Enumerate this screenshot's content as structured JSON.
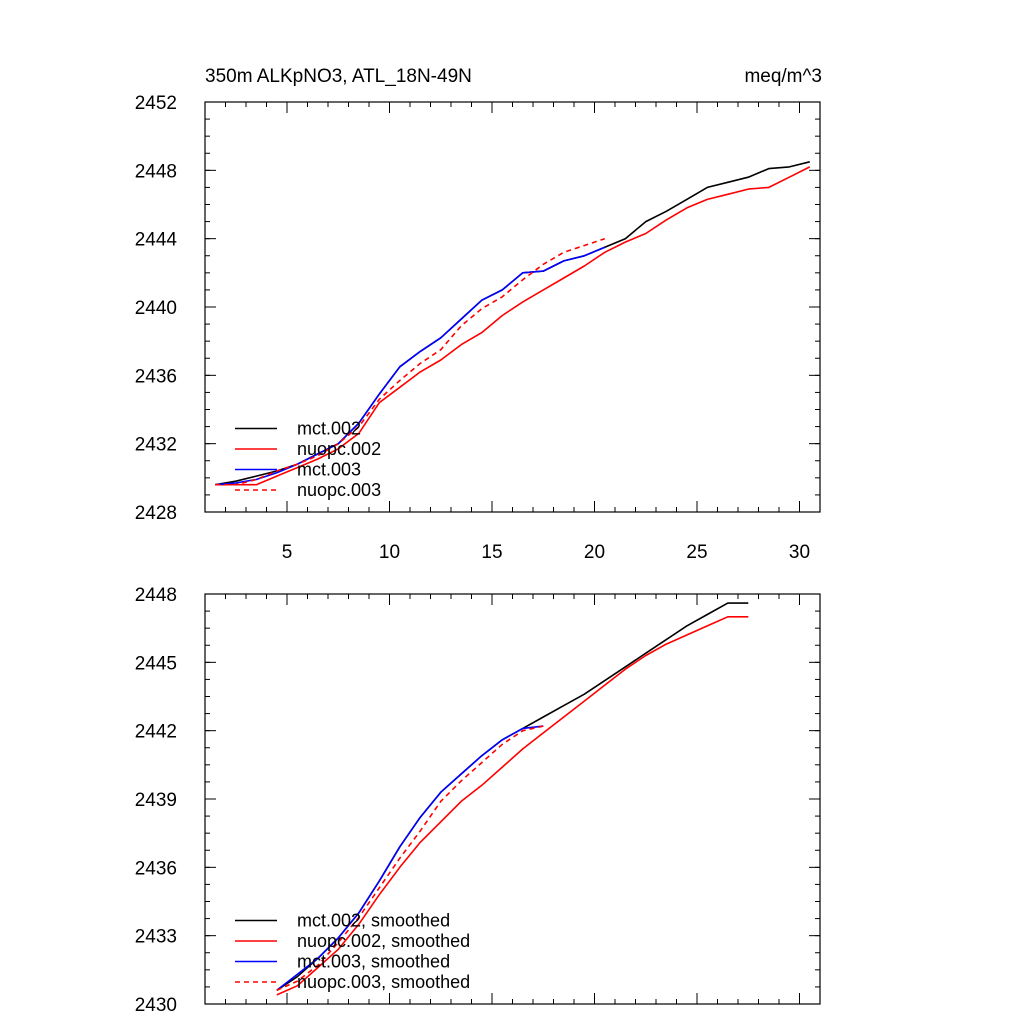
{
  "chart_data": [
    {
      "type": "line",
      "title_left": "350m ALKpNO3, ATL_18N-49N",
      "title_right": "meq/m^3",
      "xlabel": "",
      "ylabel": "",
      "xlim": [
        1,
        31
      ],
      "ylim": [
        2428,
        2452
      ],
      "xticks": [
        5,
        10,
        15,
        20,
        25,
        30
      ],
      "yticks": [
        2428,
        2432,
        2436,
        2440,
        2444,
        2448,
        2452
      ],
      "x_tick_labels_shown": true,
      "grid": false,
      "legend_position": "bottom-left",
      "series": [
        {
          "name": "mct.002",
          "color": "#000000",
          "dash": "solid",
          "x": [
            1.5,
            2.5,
            3.5,
            4.5,
            5.5,
            6.5,
            7.5,
            8.5,
            9.5,
            10.5,
            11.5,
            12.5,
            13.5,
            14.5,
            15.5,
            16.5,
            17.5,
            18.5,
            19.5,
            20.5,
            21.5,
            22.5,
            23.5,
            24.5,
            25.5,
            26.5,
            27.5,
            28.5,
            29.5,
            30.5
          ],
          "y": [
            2429.6,
            2429.8,
            2430.1,
            2430.4,
            2430.8,
            2431.4,
            2432.0,
            2433.2,
            2434.9,
            2436.5,
            2437.4,
            2438.2,
            2439.3,
            2440.4,
            2441.0,
            2442.0,
            2442.1,
            2442.7,
            2443.0,
            2443.5,
            2444.0,
            2445.0,
            2445.6,
            2446.3,
            2447.0,
            2447.3,
            2447.6,
            2448.1,
            2448.2,
            2448.5
          ]
        },
        {
          "name": "nuopc.002",
          "color": "#ff0000",
          "dash": "solid",
          "x": [
            1.5,
            2.5,
            3.5,
            4.5,
            5.5,
            6.5,
            7.5,
            8.5,
            9.5,
            10.5,
            11.5,
            12.5,
            13.5,
            14.5,
            15.5,
            16.5,
            17.5,
            18.5,
            19.5,
            20.5,
            21.5,
            22.5,
            23.5,
            24.5,
            25.5,
            26.5,
            27.5,
            28.5,
            29.5,
            30.5
          ],
          "y": [
            2429.6,
            2429.6,
            2429.6,
            2430.1,
            2430.6,
            2431.1,
            2431.7,
            2432.6,
            2434.4,
            2435.3,
            2436.2,
            2436.9,
            2437.8,
            2438.5,
            2439.5,
            2440.3,
            2441.0,
            2441.7,
            2442.4,
            2443.2,
            2443.8,
            2444.3,
            2445.1,
            2445.8,
            2446.3,
            2446.6,
            2446.9,
            2447.0,
            2447.6,
            2448.2
          ]
        },
        {
          "name": "mct.003",
          "color": "#0000ff",
          "dash": "solid",
          "x": [
            1.5,
            2.5,
            3.5,
            4.5,
            5.5,
            6.5,
            7.5,
            8.5,
            9.5,
            10.5,
            11.5,
            12.5,
            13.5,
            14.5,
            15.5,
            16.5,
            17.5,
            18.5,
            19.5,
            20.5
          ],
          "y": [
            2429.6,
            2429.7,
            2429.9,
            2430.3,
            2430.8,
            2431.4,
            2432.0,
            2433.2,
            2434.9,
            2436.5,
            2437.4,
            2438.2,
            2439.3,
            2440.4,
            2441.0,
            2442.0,
            2442.1,
            2442.7,
            2443.0,
            2443.5
          ]
        },
        {
          "name": "nuopc.003",
          "color": "#ff0000",
          "dash": "dashed",
          "x": [
            1.5,
            2.5,
            3.5,
            4.5,
            5.5,
            6.5,
            7.5,
            8.5,
            9.5,
            10.5,
            11.5,
            12.5,
            13.5,
            14.5,
            15.5,
            16.5,
            17.5,
            18.5,
            19.5,
            20.5
          ],
          "y": [
            2429.6,
            2429.6,
            2429.9,
            2430.4,
            2430.8,
            2431.3,
            2432.0,
            2433.0,
            2434.6,
            2435.7,
            2436.7,
            2437.5,
            2438.9,
            2439.9,
            2440.6,
            2441.6,
            2442.5,
            2443.2,
            2443.6,
            2444.0
          ]
        }
      ]
    },
    {
      "type": "line",
      "title_left": "",
      "title_right": "",
      "xlabel": "",
      "ylabel": "",
      "xlim": [
        1,
        31
      ],
      "ylim": [
        2430,
        2448
      ],
      "xticks": [
        5,
        10,
        15,
        20,
        25,
        30
      ],
      "yticks": [
        2430,
        2433,
        2436,
        2439,
        2442,
        2445,
        2448
      ],
      "x_tick_labels_shown": false,
      "grid": false,
      "legend_position": "bottom-left",
      "series": [
        {
          "name": "mct.002, smoothed",
          "color": "#000000",
          "dash": "solid",
          "x": [
            4.5,
            5.5,
            6.5,
            7.5,
            8.5,
            9.5,
            10.5,
            11.5,
            12.5,
            13.5,
            14.5,
            15.5,
            16.5,
            17.5,
            18.5,
            19.5,
            20.5,
            21.5,
            22.5,
            23.5,
            24.5,
            25.5,
            26.5,
            27.5
          ],
          "y": [
            2430.6,
            2431.2,
            2432.0,
            2432.9,
            2434.0,
            2435.4,
            2436.9,
            2438.2,
            2439.3,
            2440.1,
            2440.9,
            2441.6,
            2442.1,
            2442.6,
            2443.1,
            2443.6,
            2444.2,
            2444.8,
            2445.4,
            2446.0,
            2446.6,
            2447.1,
            2447.6,
            2447.6
          ]
        },
        {
          "name": "nuopc.002, smoothed",
          "color": "#ff0000",
          "dash": "solid",
          "x": [
            4.5,
            5.5,
            6.5,
            7.5,
            8.5,
            9.5,
            10.5,
            11.5,
            12.5,
            13.5,
            14.5,
            15.5,
            16.5,
            17.5,
            18.5,
            19.5,
            20.5,
            21.5,
            22.5,
            23.5,
            24.5,
            25.5,
            26.5,
            27.5
          ],
          "y": [
            2430.4,
            2430.8,
            2431.6,
            2432.4,
            2433.5,
            2434.8,
            2436.0,
            2437.1,
            2438.0,
            2438.9,
            2439.6,
            2440.4,
            2441.2,
            2441.9,
            2442.6,
            2443.3,
            2444.0,
            2444.7,
            2445.3,
            2445.8,
            2446.2,
            2446.6,
            2447.0,
            2447.0
          ]
        },
        {
          "name": "mct.003, smoothed",
          "color": "#0000ff",
          "dash": "solid",
          "x": [
            4.5,
            5.5,
            6.5,
            7.5,
            8.5,
            9.5,
            10.5,
            11.5,
            12.5,
            13.5,
            14.5,
            15.5,
            16.5,
            17.5
          ],
          "y": [
            2430.6,
            2431.3,
            2432.0,
            2432.9,
            2434.0,
            2435.4,
            2436.9,
            2438.2,
            2439.3,
            2440.1,
            2440.9,
            2441.6,
            2442.1,
            2442.2
          ]
        },
        {
          "name": "nuopc.003, smoothed",
          "color": "#ff0000",
          "dash": "dashed",
          "x": [
            4.5,
            5.5,
            6.5,
            7.5,
            8.5,
            9.5,
            10.5,
            11.5,
            12.5,
            13.5,
            14.5,
            15.5,
            16.5,
            17.5
          ],
          "y": [
            2430.6,
            2431.0,
            2431.7,
            2432.7,
            2433.8,
            2435.1,
            2436.4,
            2437.6,
            2438.9,
            2439.8,
            2440.6,
            2441.4,
            2442.0,
            2442.2
          ]
        }
      ]
    }
  ]
}
